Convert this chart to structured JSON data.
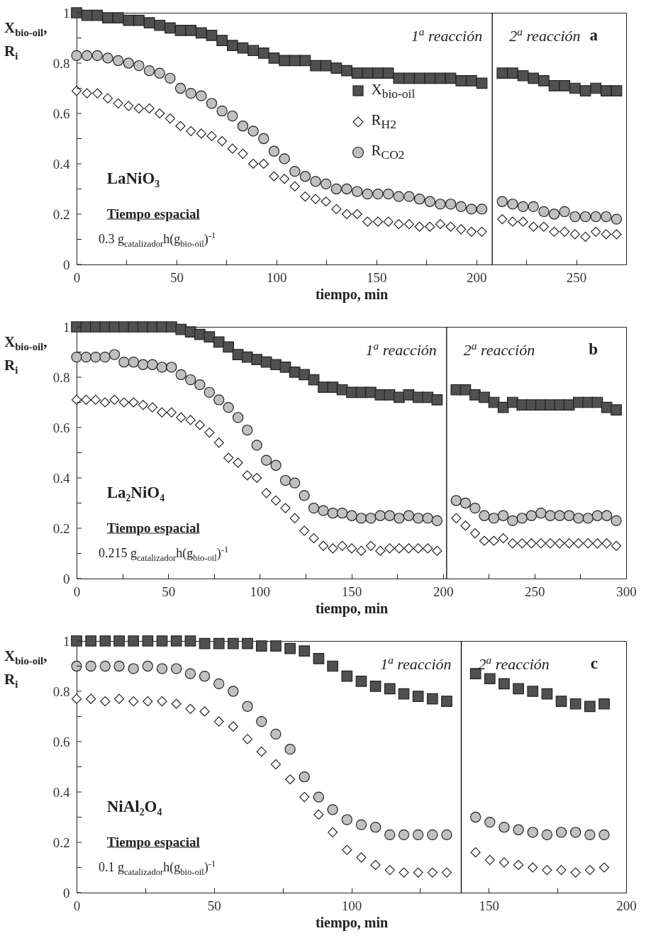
{
  "chart_data": [
    {
      "type": "scatter",
      "xlabel": "tiempo, min",
      "ylabel": "X$_{bio-oil}$, R$_{i}$",
      "xlim": [
        0,
        275
      ],
      "ylim": [
        0,
        1
      ],
      "xticks": [
        0,
        {
          "value": 25,
          "label": null
        },
        50,
        {
          "value": 75,
          "label": null
        },
        100,
        {
          "value": 125,
          "label": null
        },
        150,
        {
          "value": 175,
          "label": null
        },
        200,
        {
          "value": 225,
          "label": null
        },
        250
      ],
      "yticks": [
        0,
        {
          "value": 0.1,
          "label": null
        },
        0.2,
        {
          "value": 0.3,
          "label": null
        },
        0.4,
        {
          "value": 0.5,
          "label": null
        },
        0.6,
        {
          "value": 0.7,
          "label": null
        },
        0.8,
        {
          "value": 0.9,
          "label": null
        },
        1
      ],
      "x": [
        0,
        5.2,
        10.4,
        15.6,
        20.8,
        26,
        31.2,
        36.4,
        41.6,
        46.8,
        52,
        57.2,
        62.4,
        67.6,
        72.8,
        78,
        83.2,
        88.4,
        93.6,
        98.8,
        104,
        109.2,
        114.4,
        119.6,
        124.8,
        130,
        135.2,
        140.4,
        145.6,
        150.8,
        156,
        161.2,
        166.4,
        171.6,
        176.8,
        182,
        187.2,
        192.4,
        197.6,
        202.8,
        213,
        218.2,
        223.4,
        228.6,
        233.8,
        239,
        244.2,
        249.4,
        254.6,
        259.8,
        265,
        270.2
      ],
      "series": [
        {
          "name": "X$_{bio-oil}$",
          "color": "#505050",
          "marker": "square",
          "values": [
            1.0,
            0.99,
            0.99,
            0.98,
            0.98,
            0.97,
            0.97,
            0.96,
            0.95,
            0.94,
            0.93,
            0.93,
            0.92,
            0.91,
            0.89,
            0.87,
            0.86,
            0.85,
            0.84,
            0.82,
            0.81,
            0.81,
            0.81,
            0.79,
            0.79,
            0.78,
            0.77,
            0.76,
            0.76,
            0.76,
            0.76,
            0.74,
            0.74,
            0.74,
            0.74,
            0.74,
            0.74,
            0.73,
            0.73,
            0.72,
            0.76,
            0.76,
            0.75,
            0.74,
            0.73,
            0.71,
            0.71,
            0.7,
            0.69,
            0.7,
            0.69,
            0.69
          ]
        },
        {
          "name": "R$_{H2}$",
          "color": "#ffffff",
          "marker": "diamond",
          "values": [
            0.69,
            0.68,
            0.68,
            0.66,
            0.64,
            0.63,
            0.62,
            0.62,
            0.6,
            0.58,
            0.55,
            0.53,
            0.52,
            0.51,
            0.49,
            0.46,
            0.44,
            0.4,
            0.4,
            0.35,
            0.34,
            0.31,
            0.27,
            0.26,
            0.25,
            0.22,
            0.2,
            0.2,
            0.17,
            0.17,
            0.17,
            0.16,
            0.16,
            0.15,
            0.15,
            0.16,
            0.15,
            0.14,
            0.13,
            0.13,
            0.18,
            0.17,
            0.17,
            0.15,
            0.15,
            0.13,
            0.13,
            0.12,
            0.11,
            0.13,
            0.12,
            0.12
          ]
        },
        {
          "name": "R$_{CO2}$",
          "color": "#c0c0c0",
          "marker": "circle",
          "values": [
            0.83,
            0.83,
            0.83,
            0.82,
            0.81,
            0.8,
            0.79,
            0.77,
            0.76,
            0.74,
            0.7,
            0.68,
            0.67,
            0.64,
            0.61,
            0.59,
            0.55,
            0.53,
            0.5,
            0.45,
            0.42,
            0.37,
            0.35,
            0.33,
            0.32,
            0.3,
            0.3,
            0.29,
            0.28,
            0.28,
            0.28,
            0.27,
            0.27,
            0.26,
            0.25,
            0.24,
            0.24,
            0.23,
            0.22,
            0.22,
            0.25,
            0.24,
            0.23,
            0.23,
            0.21,
            0.2,
            0.21,
            0.19,
            0.19,
            0.19,
            0.19,
            0.18
          ]
        }
      ],
      "legend": "top",
      "ref_lines": [
        {
          "axis": "x",
          "value": 208,
          "color": "#000000"
        }
      ],
      "annotations": [
        "LaNiO₃",
        "Tiempo espacial",
        "0.3 g$_{catalizador}$h(g$_{bio-oil}$)$^{-1}$",
        "1$^{a}$ reacción",
        "2$^{a}$ reacción",
        "a"
      ]
    },
    {
      "type": "scatter",
      "xlabel": "tiempo, min",
      "ylabel": "X$_{bio-oil}$, R$_{i}$",
      "xlim": [
        0,
        300
      ],
      "ylim": [
        0,
        1
      ],
      "xticks": [
        0,
        {
          "value": 25,
          "label": null
        },
        50,
        {
          "value": 75,
          "label": null
        },
        100,
        {
          "value": 125,
          "label": null
        },
        150,
        {
          "value": 175,
          "label": null
        },
        200,
        {
          "value": 225,
          "label": null
        },
        250,
        {
          "value": 275,
          "label": null
        },
        300
      ],
      "yticks": [
        0,
        {
          "value": 0.1,
          "label": null
        },
        0.2,
        {
          "value": 0.3,
          "label": null
        },
        0.4,
        {
          "value": 0.5,
          "label": null
        },
        0.6,
        {
          "value": 0.7,
          "label": null
        },
        0.8,
        {
          "value": 0.9,
          "label": null
        },
        1
      ],
      "x": [
        0,
        5.2,
        10.4,
        15.5,
        20.7,
        25.9,
        31.1,
        36.3,
        41.4,
        46.6,
        51.8,
        57,
        62.2,
        67.3,
        72.5,
        77.7,
        82.9,
        88.1,
        93.2,
        98.4,
        103.6,
        108.8,
        114,
        119.1,
        124.3,
        129.5,
        134.7,
        139.9,
        145,
        150.2,
        155.4,
        160.6,
        165.8,
        170.9,
        176.1,
        181.3,
        186.5,
        191.7,
        196.8,
        207.2,
        212.3,
        217.5,
        222.6,
        227.8,
        232.9,
        238,
        243.2,
        248.3,
        253.5,
        258.6,
        263.7,
        268.9,
        274,
        279.2,
        284.3,
        289.4,
        294.6
      ],
      "series": [
        {
          "color": "#505050",
          "marker": "square",
          "values": [
            1.0,
            1.0,
            1.0,
            1.0,
            1.0,
            1.0,
            1.0,
            1.0,
            1.0,
            1.0,
            1.0,
            0.99,
            0.98,
            0.97,
            0.96,
            0.94,
            0.92,
            0.89,
            0.88,
            0.87,
            0.86,
            0.85,
            0.84,
            0.82,
            0.81,
            0.79,
            0.76,
            0.76,
            0.75,
            0.74,
            0.74,
            0.74,
            0.73,
            0.73,
            0.72,
            0.73,
            0.72,
            0.72,
            0.71,
            0.75,
            0.75,
            0.73,
            0.72,
            0.7,
            0.68,
            0.7,
            0.69,
            0.69,
            0.69,
            0.69,
            0.69,
            0.69,
            0.7,
            0.7,
            0.7,
            0.68,
            0.67
          ]
        },
        {
          "color": "#ffffff",
          "marker": "diamond",
          "values": [
            0.71,
            0.71,
            0.71,
            0.7,
            0.71,
            0.7,
            0.7,
            0.69,
            0.68,
            0.66,
            0.66,
            0.64,
            0.63,
            0.61,
            0.58,
            0.54,
            0.48,
            0.46,
            0.41,
            0.4,
            0.34,
            0.31,
            0.28,
            0.24,
            0.19,
            0.16,
            0.13,
            0.12,
            0.13,
            0.12,
            0.11,
            0.13,
            0.11,
            0.12,
            0.12,
            0.12,
            0.12,
            0.12,
            0.11,
            0.24,
            0.21,
            0.18,
            0.15,
            0.15,
            0.16,
            0.14,
            0.14,
            0.14,
            0.14,
            0.14,
            0.14,
            0.14,
            0.14,
            0.14,
            0.14,
            0.14,
            0.13
          ]
        },
        {
          "color": "#c0c0c0",
          "marker": "circle",
          "values": [
            0.88,
            0.88,
            0.88,
            0.88,
            0.89,
            0.86,
            0.86,
            0.85,
            0.85,
            0.84,
            0.84,
            0.81,
            0.79,
            0.77,
            0.74,
            0.71,
            0.68,
            0.64,
            0.59,
            0.53,
            0.47,
            0.45,
            0.39,
            0.38,
            0.33,
            0.28,
            0.27,
            0.26,
            0.26,
            0.25,
            0.24,
            0.24,
            0.25,
            0.25,
            0.24,
            0.25,
            0.24,
            0.24,
            0.23,
            0.31,
            0.3,
            0.28,
            0.25,
            0.24,
            0.25,
            0.23,
            0.24,
            0.25,
            0.26,
            0.25,
            0.25,
            0.25,
            0.24,
            0.24,
            0.25,
            0.25,
            0.23
          ]
        }
      ],
      "ref_lines": [
        {
          "axis": "x",
          "value": 202,
          "color": "#000000"
        }
      ],
      "annotations": [
        "La₂NiO₄",
        "Tiempo espacial",
        "0.215 g$_{catalizador}$h(g$_{bio-oil}$)$^{-1}$",
        "1$^{a}$ reacción",
        "2$^{a}$ reacción",
        "b"
      ]
    },
    {
      "type": "scatter",
      "xlabel": "tiempo, min",
      "ylabel": "X$_{bio-oil}$, R$_{i}$",
      "xlim": [
        0,
        200
      ],
      "ylim": [
        0,
        1
      ],
      "xticks": [
        0,
        {
          "value": 25,
          "label": null
        },
        50,
        {
          "value": 75,
          "label": null
        },
        100,
        {
          "value": 125,
          "label": null
        },
        150,
        {
          "value": 175,
          "label": null
        },
        200
      ],
      "yticks": [
        0,
        {
          "value": 0.1,
          "label": null
        },
        0.2,
        {
          "value": 0.3,
          "label": null
        },
        0.4,
        {
          "value": 0.5,
          "label": null
        },
        0.6,
        {
          "value": 0.7,
          "label": null
        },
        0.8,
        {
          "value": 0.9,
          "label": null
        },
        1
      ],
      "x": [
        0,
        5.2,
        10.4,
        15.5,
        20.7,
        25.9,
        31.1,
        36.3,
        41.4,
        46.6,
        51.8,
        57,
        62.2,
        67.3,
        72.5,
        77.7,
        82.9,
        88.1,
        93.2,
        98.4,
        103.6,
        108.8,
        114,
        119.1,
        124.3,
        129.5,
        134.7,
        145.2,
        150.4,
        155.6,
        160.8,
        166,
        171.2,
        176.4,
        181.6,
        186.8,
        192
      ],
      "series": [
        {
          "color": "#505050",
          "marker": "square",
          "values": [
            1.0,
            1.0,
            1.0,
            1.0,
            1.0,
            1.0,
            1.0,
            1.0,
            1.0,
            0.99,
            0.99,
            0.99,
            0.99,
            0.98,
            0.98,
            0.97,
            0.96,
            0.93,
            0.9,
            0.86,
            0.84,
            0.82,
            0.81,
            0.79,
            0.78,
            0.77,
            0.76,
            0.87,
            0.85,
            0.83,
            0.81,
            0.8,
            0.79,
            0.76,
            0.75,
            0.74,
            0.75
          ]
        },
        {
          "color": "#ffffff",
          "marker": "diamond",
          "values": [
            0.77,
            0.77,
            0.76,
            0.77,
            0.76,
            0.76,
            0.76,
            0.75,
            0.73,
            0.72,
            0.68,
            0.66,
            0.61,
            0.56,
            0.51,
            0.45,
            0.38,
            0.31,
            0.24,
            0.17,
            0.14,
            0.11,
            0.09,
            0.08,
            0.08,
            0.08,
            0.08,
            0.16,
            0.13,
            0.12,
            0.11,
            0.1,
            0.09,
            0.09,
            0.08,
            0.09,
            0.1
          ]
        },
        {
          "color": "#c0c0c0",
          "marker": "circle",
          "values": [
            0.9,
            0.9,
            0.9,
            0.9,
            0.89,
            0.9,
            0.89,
            0.89,
            0.87,
            0.86,
            0.83,
            0.8,
            0.74,
            0.68,
            0.63,
            0.57,
            0.46,
            0.38,
            0.33,
            0.29,
            0.27,
            0.26,
            0.23,
            0.23,
            0.23,
            0.23,
            0.23,
            0.3,
            0.28,
            0.26,
            0.25,
            0.24,
            0.23,
            0.24,
            0.24,
            0.23,
            0.23
          ]
        }
      ],
      "ref_lines": [
        {
          "axis": "x",
          "value": 140,
          "color": "#000000"
        }
      ],
      "annotations": [
        "NiAl₂O₄",
        "Tiempo espacial",
        "0.1 g$_{catalizador}$h(g$_{bio-oil}$)$^{-1}$",
        "1$^{a}$ reacción",
        "2$^{a}$ reacción",
        "c"
      ]
    }
  ]
}
